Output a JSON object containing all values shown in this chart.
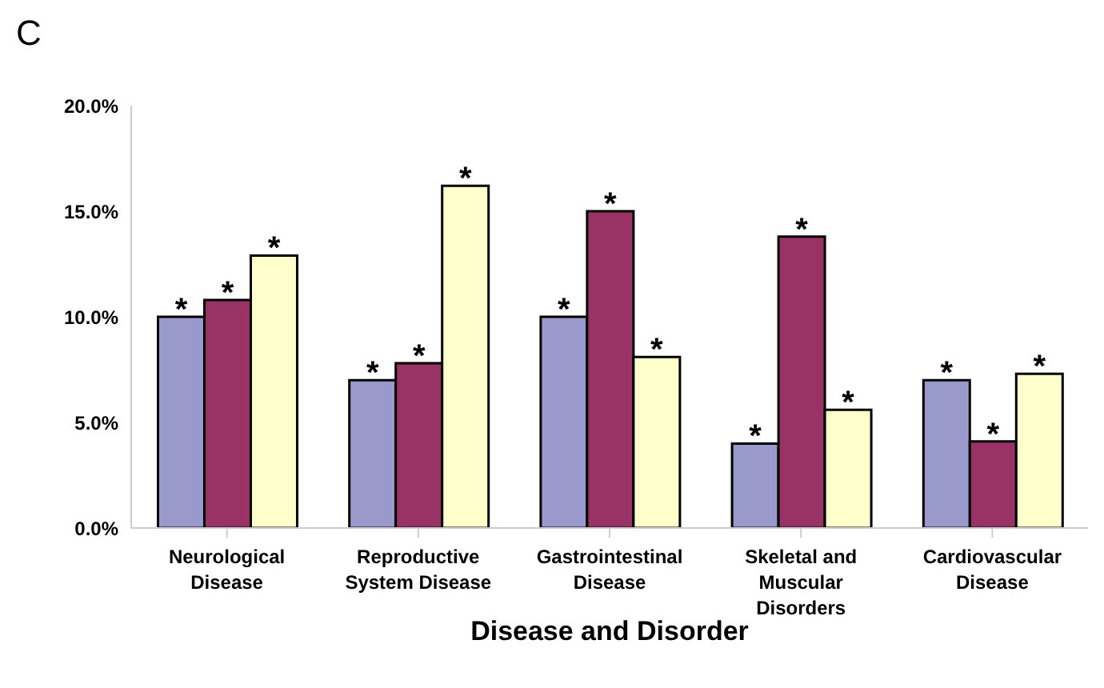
{
  "chart_data": {
    "type": "bar",
    "xlabel": "Disease and Disorder",
    "categories": [
      "Neurological Disease",
      "Reproductive System Disease",
      "Gastrointestinal Disease",
      "Skeletal and Muscular Disorders",
      "Cardiovascular Disease"
    ],
    "series": [
      {
        "color": "#9999cc",
        "values": [
          10.0,
          7.0,
          10.0,
          4.0,
          7.0
        ],
        "value_labels": [
          "*",
          "*",
          "*",
          "*",
          "*"
        ]
      },
      {
        "color": "#993366",
        "values": [
          10.8,
          7.8,
          15.0,
          13.8,
          4.1
        ],
        "value_labels": [
          "*",
          "*",
          "*",
          "*",
          "*"
        ]
      },
      {
        "color": "#ffffcc",
        "values": [
          12.9,
          16.2,
          8.1,
          5.6,
          7.3
        ],
        "value_labels": [
          "*",
          "*",
          "*",
          "*",
          "*"
        ]
      }
    ],
    "ylim": [
      0,
      20
    ],
    "yticks": [
      {
        "value": 0,
        "label": "0.0%"
      },
      {
        "value": 5,
        "label": "5.0%"
      },
      {
        "value": 10,
        "label": "10.0%"
      },
      {
        "value": 15,
        "label": "15.0%"
      },
      {
        "value": 20,
        "label": "20.0%"
      }
    ],
    "grid": false,
    "legend": false,
    "annotations": [
      "C"
    ]
  }
}
